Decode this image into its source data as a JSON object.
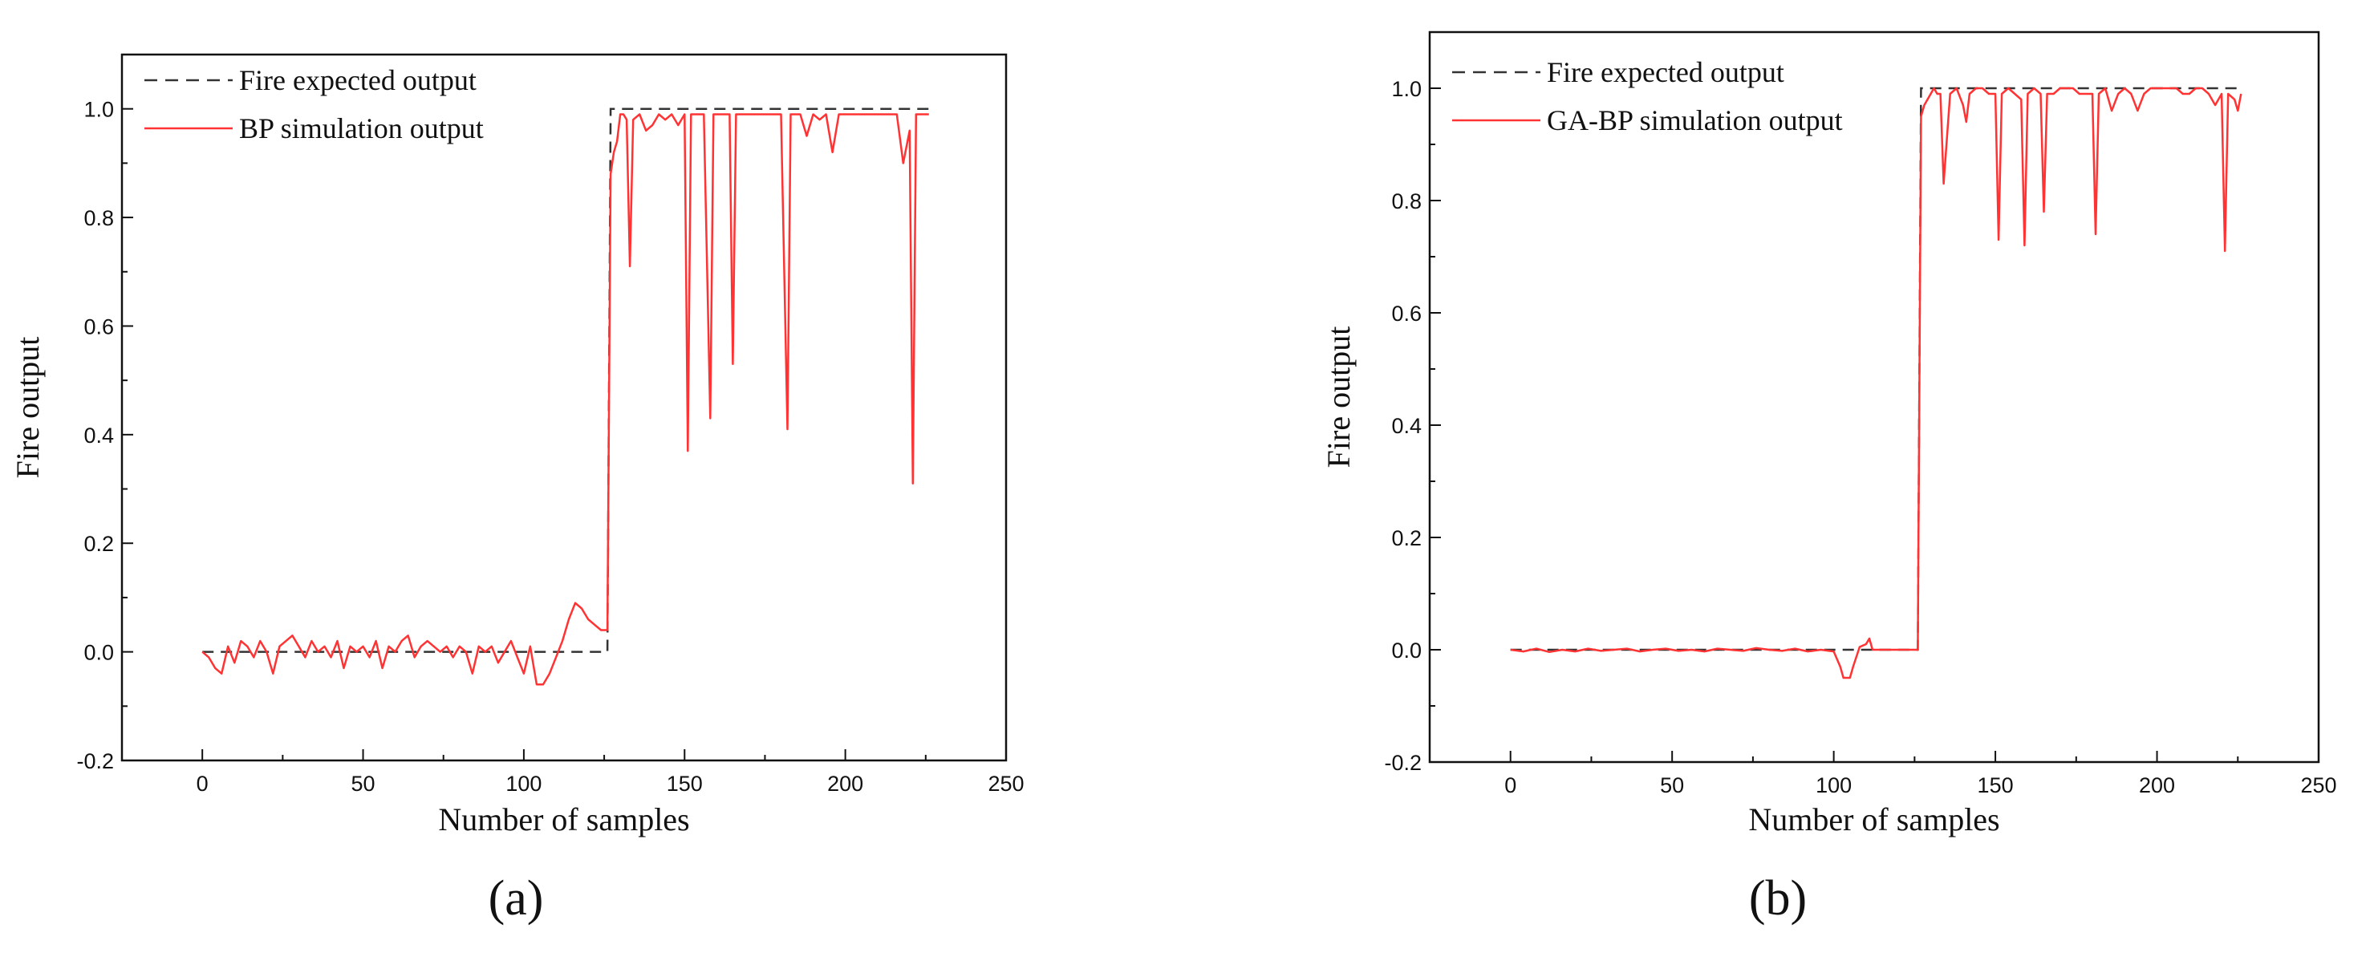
{
  "chart_data": [
    {
      "type": "line",
      "panel_label": "(a)",
      "xlabel": "Number of samples",
      "ylabel": "Fire output",
      "xlim": [
        -25,
        250
      ],
      "ylim": [
        -0.2,
        1.1
      ],
      "xticks": [
        0,
        50,
        100,
        150,
        200,
        250
      ],
      "yticks": [
        -0.2,
        0.0,
        0.2,
        0.4,
        0.6,
        0.8,
        1.0
      ],
      "ytick_labels": [
        "-0.2",
        "0.0",
        "0.2",
        "0.4",
        "0.6",
        "0.8",
        "1.0"
      ],
      "grid": false,
      "legend_position": "top-left",
      "colors": {
        "expected": "#333333",
        "simulation": "#ff3333"
      },
      "series": [
        {
          "name": "Fire expected output",
          "style": "dashed",
          "x": [
            0,
            126,
            127,
            226
          ],
          "y": [
            0,
            0,
            1,
            1
          ]
        },
        {
          "name": "BP simulation output",
          "style": "solid",
          "x": [
            0,
            2,
            4,
            6,
            8,
            10,
            12,
            14,
            16,
            18,
            20,
            22,
            24,
            26,
            28,
            30,
            32,
            34,
            36,
            38,
            40,
            42,
            44,
            46,
            48,
            50,
            52,
            54,
            56,
            58,
            60,
            62,
            64,
            66,
            68,
            70,
            72,
            74,
            76,
            78,
            80,
            82,
            84,
            86,
            88,
            90,
            92,
            94,
            96,
            98,
            100,
            102,
            104,
            106,
            108,
            110,
            112,
            114,
            116,
            118,
            120,
            122,
            124,
            126,
            127,
            128,
            129,
            130,
            131,
            132,
            133,
            134,
            136,
            138,
            140,
            142,
            144,
            146,
            148,
            150,
            151,
            152,
            154,
            156,
            158,
            159,
            160,
            162,
            164,
            165,
            166,
            168,
            170,
            172,
            174,
            176,
            178,
            180,
            182,
            183,
            184,
            186,
            188,
            190,
            192,
            194,
            196,
            198,
            200,
            202,
            204,
            206,
            208,
            210,
            212,
            214,
            216,
            218,
            220,
            221,
            222,
            224,
            226
          ],
          "y": [
            0,
            -0.01,
            -0.03,
            -0.04,
            0.01,
            -0.02,
            0.02,
            0.01,
            -0.01,
            0.02,
            0.0,
            -0.04,
            0.01,
            0.02,
            0.03,
            0.01,
            -0.01,
            0.02,
            0.0,
            0.01,
            -0.01,
            0.02,
            -0.03,
            0.01,
            0.0,
            0.01,
            -0.01,
            0.02,
            -0.03,
            0.01,
            0.0,
            0.02,
            0.03,
            -0.01,
            0.01,
            0.02,
            0.01,
            0.0,
            0.01,
            -0.01,
            0.01,
            0.0,
            -0.04,
            0.01,
            0.0,
            0.01,
            -0.02,
            0.0,
            0.02,
            -0.01,
            -0.04,
            0.01,
            -0.06,
            -0.06,
            -0.04,
            -0.01,
            0.02,
            0.06,
            0.09,
            0.08,
            0.06,
            0.05,
            0.04,
            0.04,
            0.88,
            0.92,
            0.94,
            0.99,
            0.99,
            0.98,
            0.71,
            0.98,
            0.99,
            0.96,
            0.97,
            0.99,
            0.98,
            0.99,
            0.97,
            0.99,
            0.37,
            0.99,
            0.99,
            0.99,
            0.43,
            0.99,
            0.99,
            0.99,
            0.99,
            0.53,
            0.99,
            0.99,
            0.99,
            0.99,
            0.99,
            0.99,
            0.99,
            0.99,
            0.41,
            0.99,
            0.99,
            0.99,
            0.95,
            0.99,
            0.98,
            0.99,
            0.92,
            0.99,
            0.99,
            0.99,
            0.99,
            0.99,
            0.99,
            0.99,
            0.99,
            0.99,
            0.99,
            0.9,
            0.96,
            0.31,
            0.99,
            0.99,
            0.99
          ]
        }
      ]
    },
    {
      "type": "line",
      "panel_label": "(b)",
      "xlabel": "Number of samples",
      "ylabel": "Fire output",
      "xlim": [
        -25,
        250
      ],
      "ylim": [
        -0.2,
        1.1
      ],
      "xticks": [
        0,
        50,
        100,
        150,
        200,
        250
      ],
      "yticks": [
        -0.2,
        0.0,
        0.2,
        0.4,
        0.6,
        0.8,
        1.0
      ],
      "ytick_labels": [
        "-0.2",
        "0.0",
        "0.2",
        "0.4",
        "0.6",
        "0.8",
        "1.0"
      ],
      "grid": false,
      "legend_position": "top-left",
      "colors": {
        "expected": "#333333",
        "simulation": "#ff3333"
      },
      "series": [
        {
          "name": "Fire expected output",
          "style": "dashed",
          "x": [
            0,
            126,
            127,
            226
          ],
          "y": [
            0,
            0,
            1,
            1
          ]
        },
        {
          "name": "GA-BP simulation output",
          "style": "solid",
          "x": [
            0,
            4,
            8,
            12,
            16,
            20,
            24,
            28,
            32,
            36,
            40,
            44,
            48,
            52,
            56,
            60,
            64,
            68,
            72,
            76,
            80,
            84,
            88,
            92,
            96,
            100,
            102,
            103,
            104,
            105,
            106,
            108,
            110,
            111,
            112,
            114,
            116,
            118,
            120,
            122,
            124,
            126,
            127,
            128,
            129,
            130,
            131,
            132,
            133,
            134,
            136,
            138,
            140,
            141,
            142,
            144,
            146,
            148,
            150,
            151,
            152,
            154,
            156,
            158,
            159,
            160,
            162,
            164,
            165,
            166,
            168,
            170,
            172,
            174,
            176,
            178,
            180,
            181,
            182,
            184,
            186,
            188,
            190,
            192,
            194,
            196,
            198,
            200,
            202,
            204,
            206,
            208,
            210,
            212,
            214,
            216,
            218,
            220,
            221,
            222,
            224,
            225,
            226
          ],
          "y": [
            0,
            -0.003,
            0.002,
            -0.004,
            0.0,
            -0.003,
            0.002,
            -0.002,
            0.0,
            0.002,
            -0.003,
            0.0,
            0.002,
            -0.002,
            0.0,
            -0.003,
            0.002,
            0.0,
            -0.002,
            0.003,
            0.0,
            -0.002,
            0.002,
            -0.003,
            0.0,
            -0.003,
            -0.03,
            -0.05,
            -0.05,
            -0.05,
            -0.03,
            0.005,
            0.01,
            0.02,
            0.0,
            0.0,
            0.0,
            0.0,
            0.0,
            0.0,
            0.0,
            0.0,
            0.95,
            0.97,
            0.98,
            0.99,
            1.0,
            0.99,
            0.99,
            0.83,
            0.99,
            1.0,
            0.97,
            0.94,
            0.99,
            1.0,
            1.0,
            0.99,
            0.99,
            0.73,
            0.99,
            1.0,
            0.99,
            0.98,
            0.72,
            0.99,
            1.0,
            0.99,
            0.78,
            0.99,
            0.99,
            1.0,
            1.0,
            1.0,
            0.99,
            0.99,
            0.99,
            0.74,
            0.99,
            1.0,
            0.96,
            0.99,
            1.0,
            0.99,
            0.96,
            0.99,
            1.0,
            1.0,
            1.0,
            1.0,
            1.0,
            0.99,
            0.99,
            1.0,
            1.0,
            0.99,
            0.97,
            0.99,
            0.71,
            0.99,
            0.98,
            0.96,
            0.99
          ]
        }
      ]
    }
  ]
}
